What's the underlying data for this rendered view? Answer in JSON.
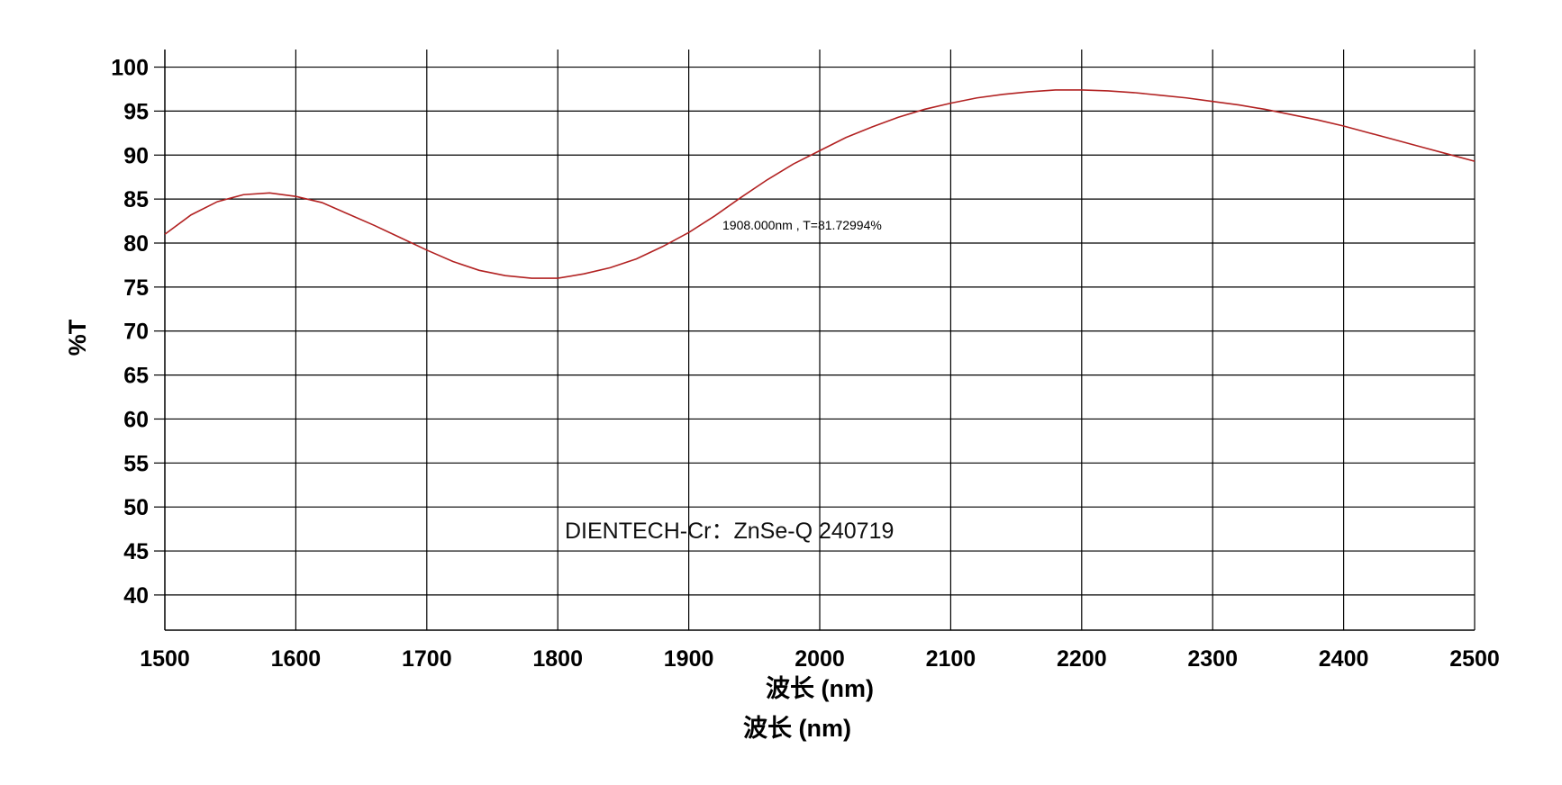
{
  "chart_data": {
    "type": "line",
    "xlabel": "波长 (nm)",
    "xlabel_secondary": "波长 (nm)",
    "ylabel": "%T",
    "xlim": [
      1500,
      2500
    ],
    "ylim": [
      36,
      102
    ],
    "x_ticks": [
      1500,
      1600,
      1700,
      1800,
      1900,
      2000,
      2100,
      2200,
      2300,
      2400,
      2500
    ],
    "y_ticks": [
      40,
      45,
      50,
      55,
      60,
      65,
      70,
      75,
      80,
      85,
      90,
      95,
      100
    ],
    "grid": true,
    "annotation": "1908.000nm , T=81.72994%",
    "watermark": "DIENTECH-Cr：ZnSe-Q 240719",
    "line_color": "#b22222",
    "series": [
      {
        "x": [
          1500,
          1520,
          1540,
          1560,
          1580,
          1600,
          1620,
          1640,
          1660,
          1680,
          1700,
          1720,
          1740,
          1760,
          1780,
          1800,
          1820,
          1840,
          1860,
          1880,
          1900,
          1920,
          1940,
          1960,
          1980,
          2000,
          2020,
          2040,
          2060,
          2080,
          2100,
          2120,
          2140,
          2160,
          2180,
          2200,
          2220,
          2240,
          2260,
          2280,
          2300,
          2320,
          2340,
          2360,
          2380,
          2400,
          2420,
          2440,
          2460,
          2480,
          2500
        ],
        "values": [
          81.0,
          83.2,
          84.7,
          85.5,
          85.7,
          85.3,
          84.6,
          83.3,
          82.0,
          80.6,
          79.2,
          77.9,
          76.9,
          76.3,
          76.0,
          76.0,
          76.5,
          77.2,
          78.2,
          79.6,
          81.2,
          83.1,
          85.2,
          87.2,
          89.0,
          90.5,
          92.0,
          93.2,
          94.3,
          95.2,
          95.9,
          96.5,
          96.9,
          97.2,
          97.4,
          97.4,
          97.3,
          97.1,
          96.8,
          96.5,
          96.1,
          95.7,
          95.2,
          94.6,
          94.0,
          93.3,
          92.5,
          91.7,
          90.9,
          90.1,
          89.3
        ]
      }
    ]
  }
}
